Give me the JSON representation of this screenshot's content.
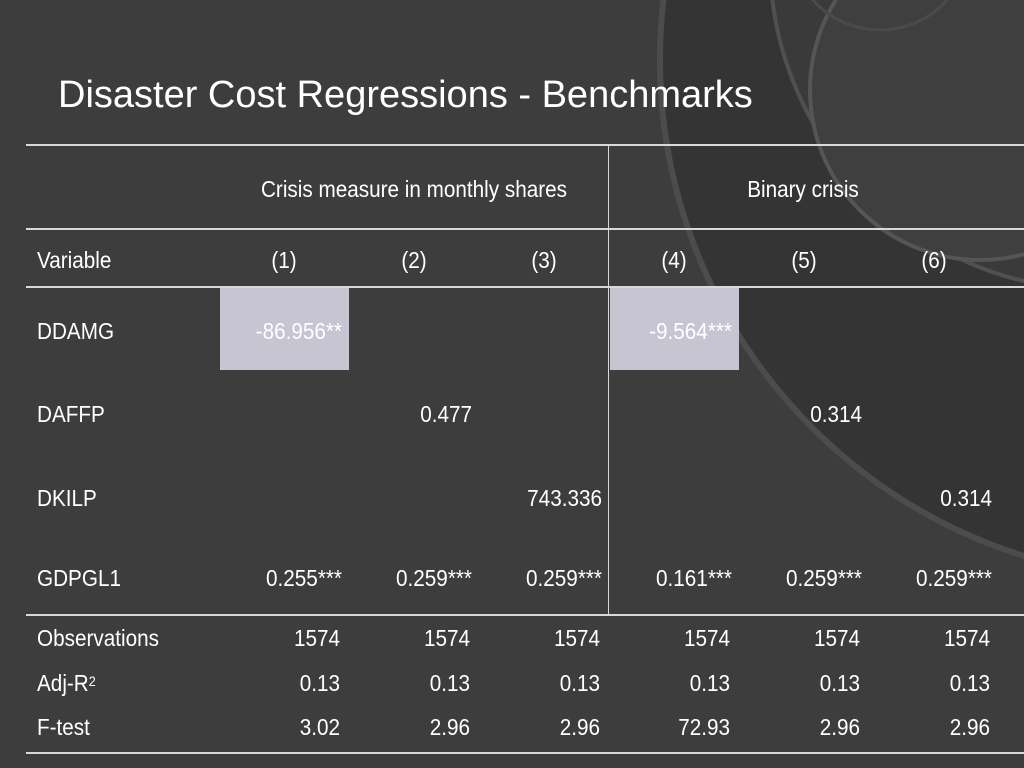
{
  "slide": {
    "title": "Disaster Cost Regressions - Benchmarks"
  },
  "table": {
    "group_headers": [
      "Crisis measure in monthly shares",
      "Binary crisis"
    ],
    "variable_header": "Variable",
    "column_headers": [
      "(1)",
      "(2)",
      "(3)",
      "(4)",
      "(5)",
      "(6)"
    ],
    "rows": [
      {
        "label": "DDAMG",
        "cells": [
          "-86.956**",
          "",
          "",
          "-9.564***",
          "",
          ""
        ]
      },
      {
        "label": "DAFFP",
        "cells": [
          "",
          "0.477",
          "",
          "",
          "0.314",
          ""
        ]
      },
      {
        "label": "DKILP",
        "cells": [
          "",
          "",
          "743.336",
          "",
          "",
          "0.314"
        ]
      },
      {
        "label": "GDPGL1",
        "cells": [
          "0.255***",
          "0.259***",
          "0.259***",
          "0.161***",
          "0.259***",
          "0.259***"
        ]
      }
    ],
    "stats": [
      {
        "label": "Observations",
        "label_sup": "",
        "cells": [
          "1574",
          "1574",
          "1574",
          "1574",
          "1574",
          "1574"
        ]
      },
      {
        "label": "Adj-R",
        "label_sup": "2",
        "cells": [
          "0.13",
          "0.13",
          "0.13",
          "0.13",
          "0.13",
          "0.13"
        ]
      },
      {
        "label": "F-test",
        "label_sup": "",
        "cells": [
          "3.02",
          "2.96",
          "2.96",
          "72.93",
          "2.96",
          "2.96"
        ]
      }
    ]
  },
  "colors": {
    "background": "#3d3d3d",
    "highlight": "#c8c5d3",
    "rule": "#d9d9d9",
    "text": "#ffffff"
  }
}
